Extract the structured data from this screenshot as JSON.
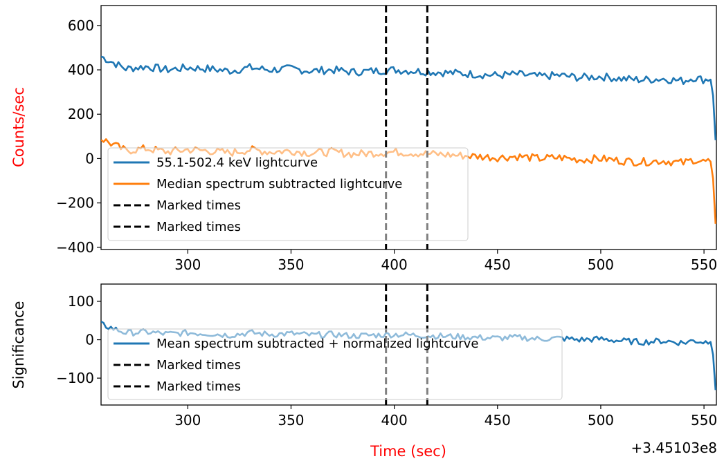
{
  "chart_data": [
    {
      "type": "line",
      "ylabel": "Counts/sec",
      "ylabel_color": "#ff0000",
      "xlim": [
        258,
        556
      ],
      "ylim": [
        -410,
        690
      ],
      "xticks": [
        300,
        350,
        400,
        450,
        500,
        550
      ],
      "yticks": [
        -400,
        -200,
        0,
        200,
        400,
        600
      ],
      "ytick_labels": [
        "−400",
        "−200",
        "0",
        "200",
        "400",
        "600"
      ],
      "marked_times": [
        396,
        416
      ],
      "legend_position": "lower-left",
      "series": [
        {
          "name": "55.1-502.4 keV lightcurve",
          "color": "#1f77b4",
          "x": [
            258,
            270,
            280,
            290,
            300,
            310,
            320,
            330,
            340,
            350,
            360,
            370,
            380,
            390,
            400,
            410,
            420,
            430,
            440,
            450,
            460,
            470,
            480,
            490,
            500,
            510,
            520,
            530,
            540,
            545,
            550,
            553,
            554,
            555,
            556
          ],
          "y": [
            460,
            405,
            415,
            400,
            410,
            405,
            395,
            410,
            400,
            405,
            395,
            400,
            390,
            395,
            400,
            395,
            390,
            385,
            380,
            375,
            380,
            370,
            375,
            365,
            370,
            360,
            355,
            360,
            350,
            365,
            355,
            360,
            340,
            200,
            5
          ]
        },
        {
          "name": "Median spectrum subtracted lightcurve",
          "color": "#ff7f0e",
          "x": [
            258,
            270,
            280,
            290,
            300,
            310,
            320,
            330,
            340,
            350,
            360,
            370,
            380,
            390,
            400,
            410,
            420,
            430,
            440,
            450,
            460,
            470,
            480,
            490,
            500,
            510,
            520,
            530,
            540,
            545,
            550,
            553,
            554,
            555,
            556
          ],
          "y": [
            90,
            35,
            45,
            30,
            40,
            35,
            25,
            40,
            30,
            35,
            25,
            30,
            20,
            25,
            30,
            25,
            20,
            15,
            10,
            5,
            10,
            0,
            5,
            -5,
            0,
            -10,
            -15,
            -10,
            -20,
            -5,
            -15,
            -10,
            -30,
            -180,
            -370
          ]
        },
        {
          "name": "Marked times",
          "color": "#000000",
          "style": "dashed"
        },
        {
          "name": "Marked times",
          "color": "#000000",
          "style": "dashed"
        }
      ]
    },
    {
      "type": "line",
      "xlabel": "Time (sec)",
      "xlabel_color": "#ff0000",
      "ylabel": "Significance",
      "ylabel_color": "#000000",
      "x_offset_label": "+3.45103e8",
      "xlim": [
        258,
        556
      ],
      "ylim": [
        -170,
        145
      ],
      "xticks": [
        300,
        350,
        400,
        450,
        500,
        550
      ],
      "yticks": [
        -100,
        0,
        100
      ],
      "ytick_labels": [
        "−100",
        "0",
        "100"
      ],
      "marked_times": [
        396,
        416
      ],
      "legend_position": "lower-left",
      "series": [
        {
          "name": "Mean spectrum subtracted + normalized lightcurve",
          "color": "#1f77b4",
          "x": [
            258,
            270,
            280,
            290,
            300,
            310,
            320,
            330,
            340,
            350,
            360,
            370,
            380,
            390,
            400,
            410,
            420,
            430,
            440,
            450,
            460,
            470,
            480,
            490,
            500,
            510,
            520,
            530,
            540,
            545,
            550,
            553,
            554,
            555,
            556
          ],
          "y": [
            40,
            18,
            20,
            15,
            18,
            16,
            12,
            18,
            14,
            16,
            12,
            14,
            10,
            12,
            14,
            12,
            10,
            8,
            6,
            4,
            6,
            2,
            4,
            0,
            2,
            -3,
            -6,
            -3,
            -8,
            -2,
            -6,
            -4,
            -12,
            -80,
            -165
          ]
        },
        {
          "name": "Marked times",
          "color": "#000000",
          "style": "dashed"
        },
        {
          "name": "Marked times",
          "color": "#000000",
          "style": "dashed"
        }
      ]
    }
  ]
}
